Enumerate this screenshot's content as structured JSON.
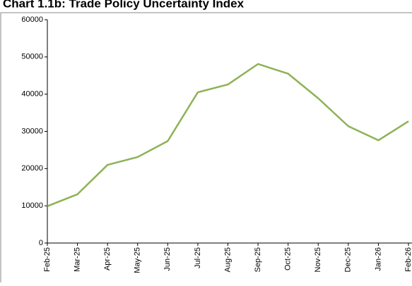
{
  "chart_data": {
    "type": "line",
    "title": "Chart 1.1b: Trade Policy Uncertainty Index",
    "categories": [
      "Feb-25",
      "Mar-25",
      "Apr-25",
      "May-25",
      "Jun-25",
      "Jul-25",
      "Aug-25",
      "Sep-25",
      "Oct-25",
      "Nov-25",
      "Dec-25",
      "Jan-26",
      "Feb-26"
    ],
    "series": [
      {
        "name": "Trade Policy Uncertainty Index",
        "color": "#8db255",
        "values": [
          9900,
          13100,
          21000,
          23100,
          27400,
          40500,
          42600,
          48100,
          45500,
          38900,
          31400,
          27600,
          32700
        ]
      }
    ],
    "ylim": [
      0,
      60000
    ],
    "yticks": [
      0,
      10000,
      20000,
      30000,
      40000,
      50000,
      60000
    ],
    "grid": false
  }
}
